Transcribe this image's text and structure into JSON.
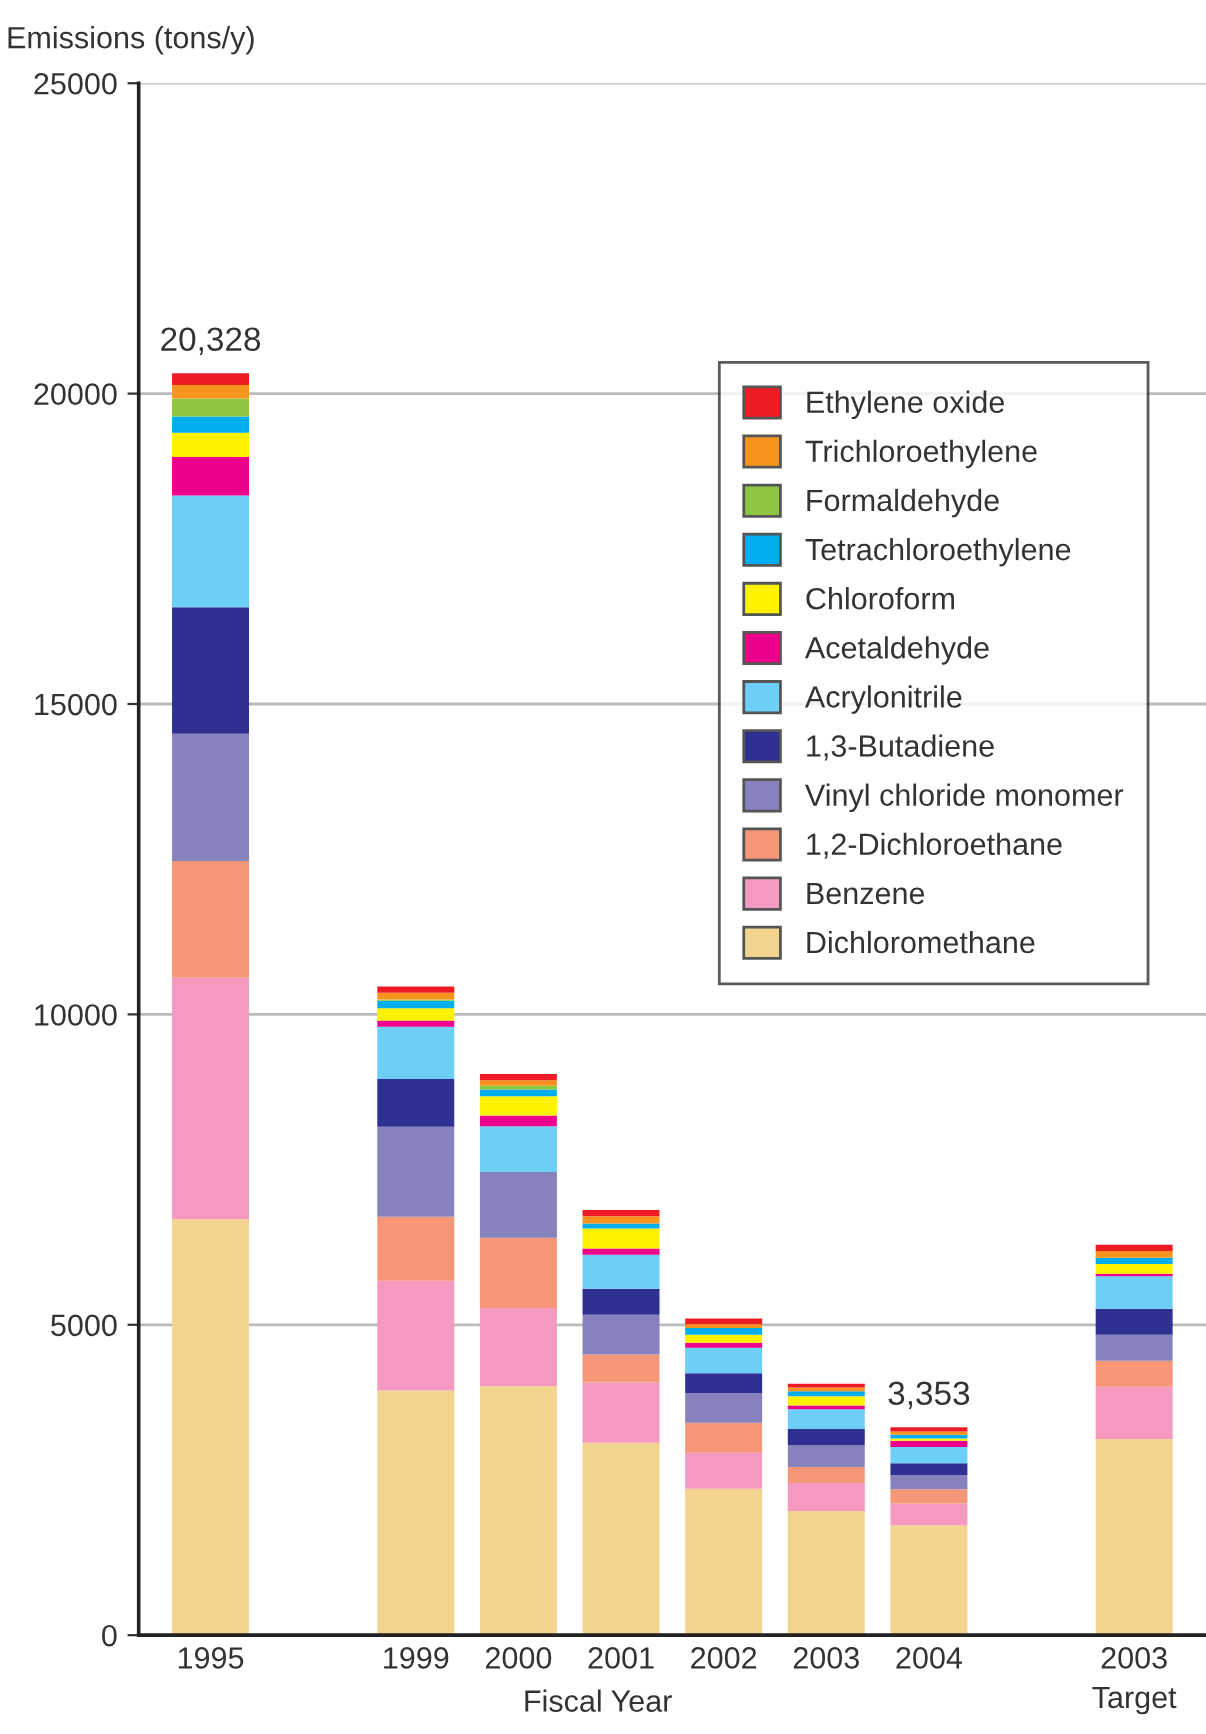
{
  "chart_data": {
    "type": "bar",
    "stacked": true,
    "ylabel": "Emissions (tons/y)",
    "xlabel": "Fiscal Year",
    "categories": [
      "1995",
      null,
      "1999",
      "2000",
      "2001",
      "2002",
      "2003",
      "2004",
      null,
      "2003\nTarget"
    ],
    "series": [
      {
        "name": "Dichloromethane",
        "color": "#f2d48f",
        "values": [
          6700,
          null,
          3940,
          4010,
          3100,
          2360,
          2000,
          1770,
          null,
          3160
        ]
      },
      {
        "name": "Benzene",
        "color": "#f49ac1",
        "values": [
          3890,
          null,
          1770,
          1260,
          970,
          580,
          450,
          350,
          null,
          840
        ]
      },
      {
        "name": "1,2-Dichloroethane",
        "color": "#f69679",
        "values": [
          1880,
          null,
          1030,
          1130,
          450,
          480,
          260,
          230,
          null,
          420
        ]
      },
      {
        "name": "Vinyl chloride monomer",
        "color": "#8781bd",
        "values": [
          2050,
          null,
          1450,
          1060,
          640,
          480,
          350,
          230,
          null,
          420
        ]
      },
      {
        "name": "1,3-Butadiene",
        "color": "#2e3192",
        "values": [
          2040,
          null,
          770,
          0,
          420,
          320,
          260,
          190,
          null,
          420
        ]
      },
      {
        "name": "Acrylonitrile",
        "color": "#6dcff6",
        "values": [
          1800,
          null,
          840,
          740,
          550,
          410,
          320,
          260,
          null,
          520
        ]
      },
      {
        "name": "Acetaldehyde",
        "color": "#ec008c",
        "values": [
          620,
          null,
          100,
          170,
          100,
          80,
          60,
          100,
          null,
          40
        ]
      },
      {
        "name": "Chloroform",
        "color": "#fff200",
        "values": [
          390,
          null,
          200,
          310,
          320,
          130,
          150,
          40,
          null,
          160
        ]
      },
      {
        "name": "Tetrachloroethylene",
        "color": "#00aeef",
        "values": [
          260,
          null,
          120,
          110,
          80,
          110,
          80,
          60,
          null,
          100
        ]
      },
      {
        "name": "Formaldehyde",
        "color": "#8dc63f",
        "values": [
          290,
          null,
          20,
          60,
          0,
          0,
          0,
          0,
          null,
          0
        ]
      },
      {
        "name": "Trichloroethylene",
        "color": "#f7941d",
        "values": [
          220,
          null,
          110,
          90,
          120,
          60,
          60,
          50,
          null,
          110
        ]
      },
      {
        "name": "Ethylene oxide",
        "color": "#ed1c24",
        "values": [
          190,
          null,
          100,
          100,
          100,
          90,
          60,
          70,
          null,
          100
        ]
      }
    ],
    "totals": [
      "20,328",
      null,
      null,
      null,
      null,
      null,
      null,
      "3,353",
      null,
      null
    ],
    "ylim": [
      0,
      25000
    ],
    "yticks": [
      0,
      5000,
      10000,
      15000,
      20000,
      25000
    ],
    "grid": "y",
    "legend": "top right"
  }
}
